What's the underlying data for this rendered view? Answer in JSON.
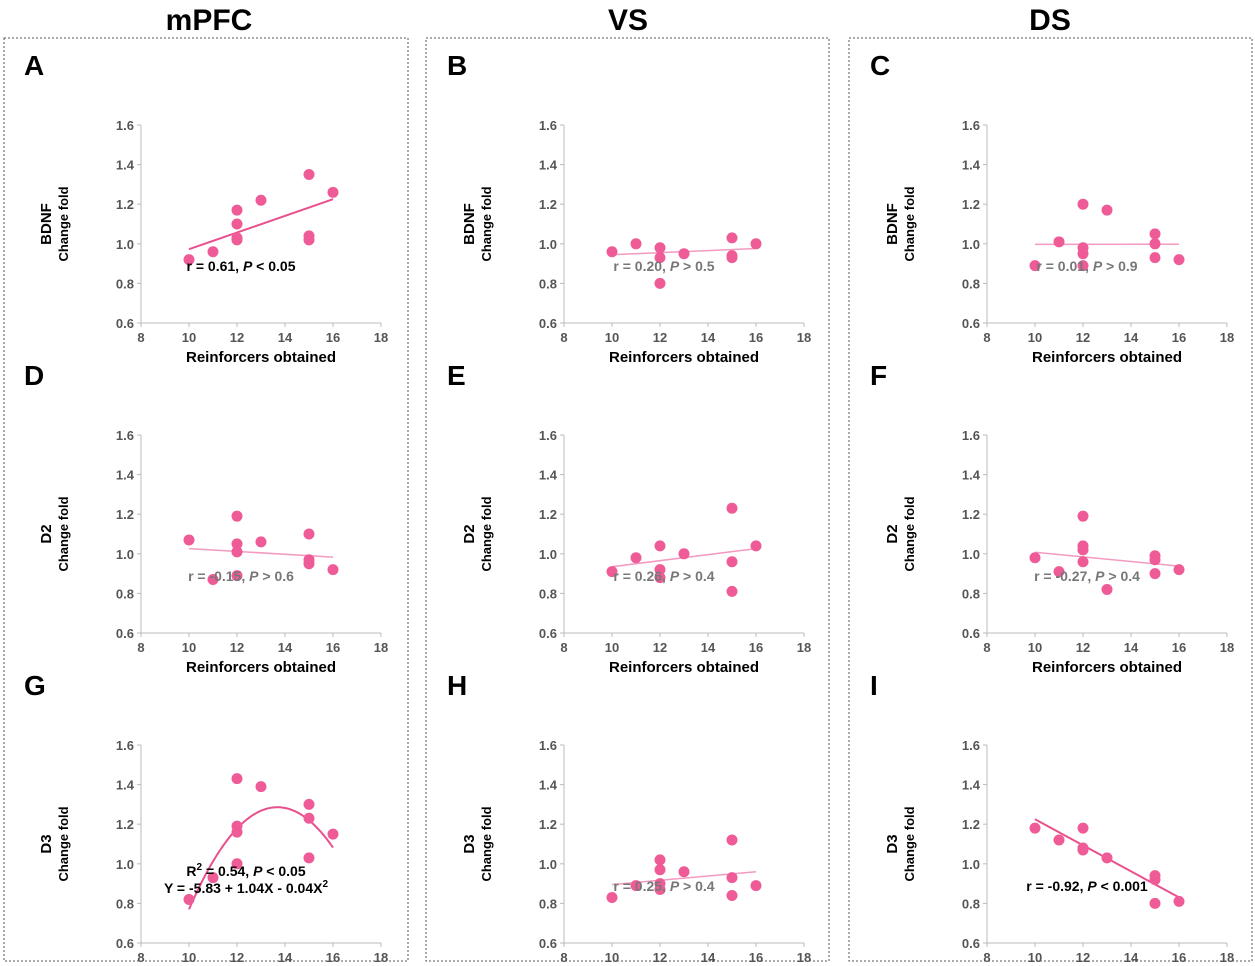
{
  "columns": [
    "mPFC",
    "VS",
    "DS"
  ],
  "rows": [
    "BDNF",
    "D2",
    "D3"
  ],
  "colors": {
    "points": "#ef5b97",
    "fit_strong": "#e8508e",
    "fit_weak": "#f39ac0",
    "box": "#555555"
  },
  "chart_data": [
    {
      "id": "A",
      "type": "scatter",
      "column": "mPFC",
      "row_label": "BDNF",
      "ylabel": "Change fold",
      "xlabel": "Reinforcers obtained",
      "xlim": [
        8,
        18
      ],
      "ylim": [
        0.6,
        1.6
      ],
      "xticks": [
        "8",
        "10",
        "12",
        "14",
        "16",
        "18"
      ],
      "yticks": [
        "0.6",
        "0.8",
        "1.0",
        "1.2",
        "1.4",
        "1.6"
      ],
      "x": [
        10,
        11,
        12,
        12,
        12,
        12,
        13,
        15,
        15,
        15,
        16
      ],
      "y": [
        0.92,
        0.96,
        1.17,
        1.1,
        1.03,
        1.02,
        1.22,
        1.35,
        1.04,
        1.02,
        1.26
      ],
      "fit": {
        "kind": "linear",
        "coef": [
          0.5517,
          0.0421
        ],
        "range": [
          10,
          16
        ],
        "strength": "strong"
      },
      "annotation": {
        "prefix": "r = 0.61, ",
        "p_symbol": "P",
        "suffix": " < 0.05",
        "tone": "dark"
      }
    },
    {
      "id": "B",
      "type": "scatter",
      "column": "VS",
      "row_label": "BDNF",
      "ylabel": "Change fold",
      "xlabel": "Reinforcers obtained",
      "xlim": [
        8,
        18
      ],
      "ylim": [
        0.6,
        1.6
      ],
      "xticks": [
        "8",
        "10",
        "12",
        "14",
        "16",
        "18"
      ],
      "yticks": [
        "0.6",
        "0.8",
        "1.0",
        "1.2",
        "1.4",
        "1.6"
      ],
      "x": [
        10,
        11,
        12,
        12,
        12,
        13,
        15,
        15,
        15,
        16
      ],
      "y": [
        0.96,
        1.0,
        0.98,
        0.93,
        0.8,
        0.95,
        1.03,
        0.94,
        0.93,
        1.0
      ],
      "fit": {
        "kind": "linear",
        "coef": [
          0.8917,
          0.0053
        ],
        "range": [
          10,
          16
        ],
        "strength": "weak"
      },
      "annotation": {
        "prefix": "r = 0.20, ",
        "p_symbol": "P",
        "suffix": " > 0.5",
        "tone": "grey"
      }
    },
    {
      "id": "C",
      "type": "scatter",
      "column": "DS",
      "row_label": "BDNF",
      "ylabel": "Change fold",
      "xlabel": "Reinforcers obtained",
      "xlim": [
        8,
        18
      ],
      "ylim": [
        0.6,
        1.6
      ],
      "xticks": [
        "8",
        "10",
        "12",
        "14",
        "16",
        "18"
      ],
      "yticks": [
        "0.6",
        "0.8",
        "1.0",
        "1.2",
        "1.4",
        "1.6"
      ],
      "x": [
        10,
        11,
        12,
        12,
        12,
        12,
        13,
        15,
        15,
        15,
        16
      ],
      "y": [
        0.89,
        1.01,
        1.2,
        0.98,
        0.95,
        0.89,
        1.17,
        1.05,
        1.0,
        0.93,
        0.92
      ],
      "fit": {
        "kind": "linear",
        "coef": [
          0.995,
          0.0002
        ],
        "range": [
          10,
          16
        ],
        "strength": "weak"
      },
      "annotation": {
        "prefix": "r = 0.01, ",
        "p_symbol": "P",
        "suffix": " > 0.9",
        "tone": "grey"
      }
    },
    {
      "id": "D",
      "type": "scatter",
      "column": "mPFC",
      "row_label": "D2",
      "ylabel": "Change fold",
      "xlabel": "Reinforcers obtained",
      "xlim": [
        8,
        18
      ],
      "ylim": [
        0.6,
        1.6
      ],
      "xticks": [
        "8",
        "10",
        "12",
        "14",
        "16",
        "18"
      ],
      "yticks": [
        "0.6",
        "0.8",
        "1.0",
        "1.2",
        "1.4",
        "1.6"
      ],
      "x": [
        10,
        11,
        12,
        12,
        12,
        12,
        13,
        15,
        15,
        15,
        16
      ],
      "y": [
        1.07,
        0.87,
        1.19,
        1.05,
        1.01,
        0.89,
        1.06,
        1.1,
        0.97,
        0.95,
        0.92
      ],
      "fit": {
        "kind": "linear",
        "coef": [
          1.0983,
          -0.0072
        ],
        "range": [
          10,
          16
        ],
        "strength": "weak"
      },
      "annotation": {
        "prefix": "r = -0.15, ",
        "p_symbol": "P",
        "suffix": " > 0.6",
        "tone": "grey"
      }
    },
    {
      "id": "E",
      "type": "scatter",
      "column": "VS",
      "row_label": "D2",
      "ylabel": "Change fold",
      "xlabel": "Reinforcers obtained",
      "xlim": [
        8,
        18
      ],
      "ylim": [
        0.6,
        1.6
      ],
      "xticks": [
        "8",
        "10",
        "12",
        "14",
        "16",
        "18"
      ],
      "yticks": [
        "0.6",
        "0.8",
        "1.0",
        "1.2",
        "1.4",
        "1.6"
      ],
      "x": [
        10,
        11,
        12,
        12,
        12,
        13,
        15,
        15,
        15,
        16
      ],
      "y": [
        0.91,
        0.98,
        1.04,
        0.92,
        0.88,
        1.0,
        1.23,
        0.96,
        0.81,
        1.04
      ],
      "fit": {
        "kind": "linear",
        "coef": [
          0.7817,
          0.0153
        ],
        "range": [
          10,
          16
        ],
        "strength": "weak"
      },
      "annotation": {
        "prefix": "r = 0.26, ",
        "p_symbol": "P",
        "suffix": " > 0.4",
        "tone": "grey"
      }
    },
    {
      "id": "F",
      "type": "scatter",
      "column": "DS",
      "row_label": "D2",
      "ylabel": "Change fold",
      "xlabel": "Reinforcers obtained",
      "xlim": [
        8,
        18
      ],
      "ylim": [
        0.6,
        1.6
      ],
      "xticks": [
        "8",
        "10",
        "12",
        "14",
        "16",
        "18"
      ],
      "yticks": [
        "0.6",
        "0.8",
        "1.0",
        "1.2",
        "1.4",
        "1.6"
      ],
      "x": [
        10,
        11,
        12,
        12,
        12,
        12,
        13,
        15,
        15,
        15,
        16
      ],
      "y": [
        0.98,
        0.91,
        1.19,
        1.04,
        1.02,
        0.96,
        0.82,
        0.99,
        0.97,
        0.9,
        0.92
      ],
      "fit": {
        "kind": "linear",
        "coef": [
          1.125,
          -0.0117
        ],
        "range": [
          10,
          16
        ],
        "strength": "weak"
      },
      "annotation": {
        "prefix": "r = -0.27, ",
        "p_symbol": "P",
        "suffix": " > 0.4",
        "tone": "grey"
      }
    },
    {
      "id": "G",
      "type": "scatter",
      "column": "mPFC",
      "row_label": "D3",
      "ylabel": "Change fold",
      "xlabel": "Reinforcers obtained",
      "xlim": [
        8,
        18
      ],
      "ylim": [
        0.6,
        1.6
      ],
      "xticks": [
        "8",
        "10",
        "12",
        "14",
        "16",
        "18"
      ],
      "yticks": [
        "0.6",
        "0.8",
        "1.0",
        "1.2",
        "1.4",
        "1.6"
      ],
      "x": [
        10,
        11,
        12,
        12,
        12,
        12,
        13,
        15,
        15,
        15,
        16
      ],
      "y": [
        0.82,
        0.93,
        1.43,
        1.19,
        1.16,
        1.0,
        1.39,
        1.3,
        1.23,
        1.03,
        1.15
      ],
      "fit": {
        "kind": "quadratic",
        "coef": [
          -5.83,
          1.04,
          -0.038
        ],
        "range": [
          10,
          16
        ],
        "strength": "strong"
      },
      "annotation": {
        "prefix": "R",
        "sup": "2",
        "mid": " = 0.54, ",
        "p_symbol": "P",
        "suffix": " < 0.05",
        "tone": "dark",
        "equation": "Y = -5.83 + 1.04X - 0.04X",
        "equation_sup": "2"
      }
    },
    {
      "id": "H",
      "type": "scatter",
      "column": "VS",
      "row_label": "D3",
      "ylabel": "Change fold",
      "xlabel": "Reinforcers obtained",
      "xlim": [
        8,
        18
      ],
      "ylim": [
        0.6,
        1.6
      ],
      "xticks": [
        "8",
        "10",
        "12",
        "14",
        "16",
        "18"
      ],
      "yticks": [
        "0.6",
        "0.8",
        "1.0",
        "1.2",
        "1.4",
        "1.6"
      ],
      "x": [
        10,
        11,
        12,
        12,
        12,
        12,
        13,
        15,
        15,
        15,
        16
      ],
      "y": [
        0.83,
        0.89,
        1.02,
        0.97,
        0.9,
        0.87,
        0.96,
        1.12,
        0.93,
        0.84,
        0.89
      ],
      "fit": {
        "kind": "linear",
        "coef": [
          0.7867,
          0.0108
        ],
        "range": [
          10,
          16
        ],
        "strength": "weak"
      },
      "annotation": {
        "prefix": "r = 0.25, ",
        "p_symbol": "P",
        "suffix": " > 0.4",
        "tone": "grey"
      }
    },
    {
      "id": "I",
      "type": "scatter",
      "column": "DS",
      "row_label": "D3",
      "ylabel": "Change fold",
      "xlabel": "Reinforcers obtained",
      "xlim": [
        8,
        18
      ],
      "ylim": [
        0.6,
        1.6
      ],
      "xticks": [
        "8",
        "10",
        "12",
        "14",
        "16",
        "18"
      ],
      "yticks": [
        "0.6",
        "0.8",
        "1.0",
        "1.2",
        "1.4",
        "1.6"
      ],
      "x": [
        10,
        11,
        12,
        12,
        12,
        13,
        15,
        15,
        15,
        16
      ],
      "y": [
        1.18,
        1.12,
        1.18,
        1.08,
        1.07,
        1.03,
        0.94,
        0.92,
        0.8,
        0.81
      ],
      "fit": {
        "kind": "linear",
        "coef": [
          1.8833,
          -0.0658
        ],
        "range": [
          10,
          16
        ],
        "strength": "strong"
      },
      "annotation": {
        "prefix": "r = -0.92, ",
        "p_symbol": "P",
        "suffix": " < 0.001",
        "tone": "dark"
      }
    }
  ]
}
